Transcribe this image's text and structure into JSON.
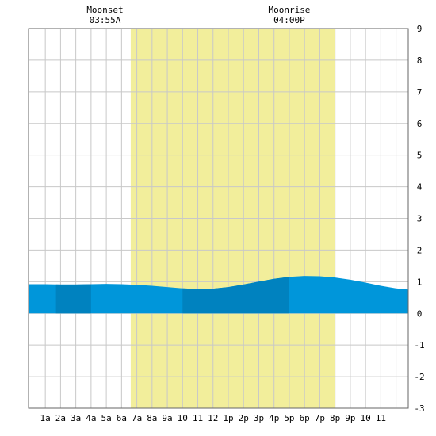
{
  "annotations": {
    "moonset": {
      "label": "Moonset",
      "time": "03:55A",
      "hour": 3.9167
    },
    "moonrise": {
      "label": "Moonrise",
      "time": "04:00P",
      "hour": 16.0
    }
  },
  "chart_data": {
    "type": "area",
    "title": "",
    "xlabel": "",
    "ylabel": "",
    "xlim": [
      -1.1,
      23.8
    ],
    "ylim": [
      -3,
      9
    ],
    "grid": true,
    "x_tick_labels": [
      "1a",
      "2a",
      "3a",
      "4a",
      "5a",
      "6a",
      "7a",
      "8a",
      "9a",
      "10",
      "11",
      "12",
      "1p",
      "2p",
      "3p",
      "4p",
      "5p",
      "6p",
      "7p",
      "8p",
      "9p",
      "10",
      "11"
    ],
    "y_tick_labels": [
      "-3",
      "-2",
      "-1",
      "0",
      "1",
      "2",
      "3",
      "4",
      "5",
      "6",
      "7",
      "8",
      "9"
    ],
    "daylight": {
      "start": 5.6,
      "end": 19.0,
      "color": "#f2ee9b"
    },
    "night_color": "#ffffff",
    "fill_colors": {
      "light": "#0096da",
      "dark": "#0082bf"
    },
    "dark_bands": [
      [
        0.7,
        3.0
      ],
      [
        9.0,
        16.0
      ]
    ],
    "series": [
      {
        "x": [
          -1.1,
          0,
          1,
          2,
          3,
          4,
          5,
          6,
          7,
          8,
          9,
          10,
          11,
          12,
          13,
          14,
          15,
          16,
          17,
          18,
          19,
          20,
          21,
          22,
          23,
          23.8
        ],
        "values": [
          0.92,
          0.92,
          0.91,
          0.91,
          0.92,
          0.93,
          0.92,
          0.9,
          0.87,
          0.83,
          0.79,
          0.77,
          0.78,
          0.83,
          0.91,
          1.0,
          1.09,
          1.15,
          1.18,
          1.17,
          1.13,
          1.06,
          0.97,
          0.87,
          0.79,
          0.75
        ]
      }
    ]
  }
}
